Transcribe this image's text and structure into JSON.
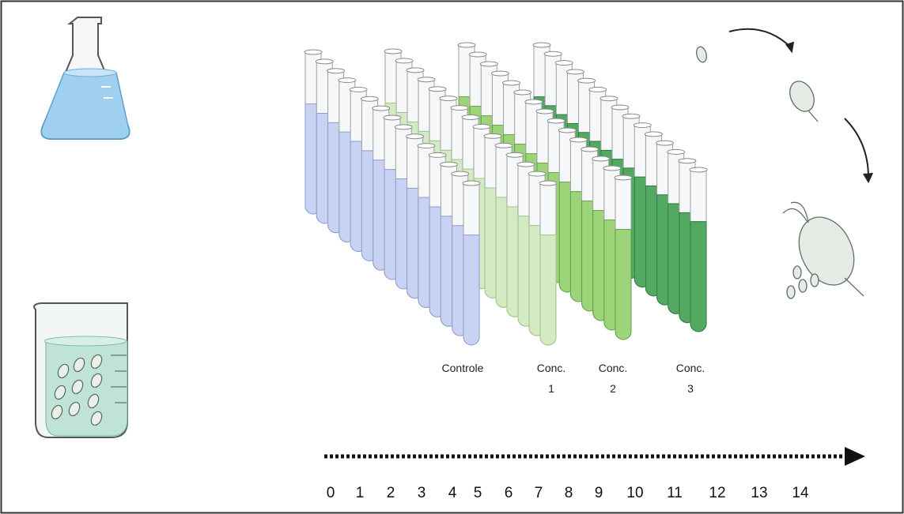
{
  "groups": [
    {
      "label": [
        "Controle"
      ]
    },
    {
      "label": [
        "Conc.",
        "1"
      ]
    },
    {
      "label": [
        "Conc.",
        "2"
      ]
    },
    {
      "label": [
        "Conc.",
        "3"
      ]
    }
  ],
  "timeline": {
    "ticks": [
      0,
      1,
      2,
      3,
      4,
      5,
      6,
      7,
      8,
      9,
      10,
      11,
      12,
      13,
      14
    ]
  }
}
